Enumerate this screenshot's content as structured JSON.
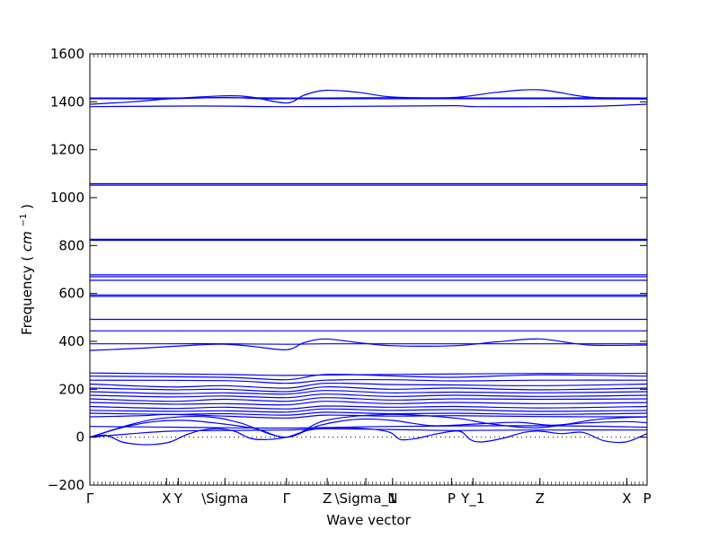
{
  "chart_data": {
    "type": "line",
    "xlabel": "Wave vector",
    "ylabel": "Frequency",
    "ylabel_unit_base": "cm",
    "ylabel_unit_exp": "−1",
    "ylim": [
      -200,
      1600
    ],
    "yticks": [
      -200,
      0,
      200,
      400,
      600,
      800,
      1000,
      1200,
      1400,
      1600
    ],
    "xlim": [
      0,
      10.4
    ],
    "xticks": [
      {
        "x": 0.0,
        "label": "Γ"
      },
      {
        "x": 1.43,
        "label": "X"
      },
      {
        "x": 1.65,
        "label": "Y"
      },
      {
        "x": 2.52,
        "label": "\\Sigma"
      },
      {
        "x": 3.67,
        "label": "Γ"
      },
      {
        "x": 4.43,
        "label": "Z"
      },
      {
        "x": 5.15,
        "label": "\\Sigma_1"
      },
      {
        "x": 5.65,
        "label": "N"
      },
      {
        "x": 6.75,
        "label": "P"
      },
      {
        "x": 7.15,
        "label": "Y_1"
      },
      {
        "x": 8.4,
        "label": "Z"
      },
      {
        "x": 10.02,
        "label": "X"
      },
      {
        "x": 10.4,
        "label": "P"
      }
    ],
    "grid": false,
    "zero_line": true,
    "line_color": "#0000ff",
    "series": [
      {
        "x": [
          0,
          1.5,
          2.5,
          3.67,
          4.4,
          5.6,
          6.8,
          8.4,
          9.5,
          10.4
        ],
        "values": [
          1416,
          1416,
          1417,
          1416,
          1416,
          1417,
          1416,
          1416,
          1417,
          1416
        ]
      },
      {
        "x": [
          0,
          1.5,
          2.5,
          3.3,
          3.67,
          4.4,
          5.6,
          6.8,
          8.4,
          10.4
        ],
        "values": [
          1413,
          1413,
          1418,
          1412,
          1413,
          1413,
          1413,
          1413,
          1413,
          1412
        ]
      },
      {
        "x": [
          0,
          0.8,
          1.5,
          2.5,
          3.0,
          3.67,
          4.0,
          4.4,
          5.0,
          5.65,
          6.8,
          7.6,
          8.4,
          9.3,
          10.4
        ],
        "values": [
          1390,
          1400,
          1413,
          1425,
          1420,
          1395,
          1428,
          1448,
          1440,
          1420,
          1418,
          1440,
          1450,
          1420,
          1412
        ]
      },
      {
        "x": [
          0,
          1.5,
          2.5,
          3.67,
          5.6,
          6.8,
          7.2,
          8.4,
          9.5,
          10.4
        ],
        "values": [
          1380,
          1382,
          1382,
          1380,
          1382,
          1384,
          1380,
          1380,
          1382,
          1390
        ]
      },
      {
        "x": [
          0,
          2.5,
          5.6,
          8.4,
          10.4
        ],
        "values": [
          1058,
          1058,
          1058,
          1058,
          1058
        ]
      },
      {
        "x": [
          0,
          2.5,
          5.6,
          8.4,
          10.4
        ],
        "values": [
          1052,
          1052,
          1052,
          1052,
          1052
        ]
      },
      {
        "x": [
          0,
          2.5,
          5.6,
          8.4,
          10.4
        ],
        "values": [
          826,
          826,
          826,
          826,
          826
        ]
      },
      {
        "x": [
          0,
          2.5,
          5.6,
          8.4,
          10.4
        ],
        "values": [
          822,
          822,
          822,
          822,
          822
        ]
      },
      {
        "x": [
          0,
          2.5,
          5.6,
          8.4,
          10.4
        ],
        "values": [
          678,
          678,
          678,
          678,
          678
        ]
      },
      {
        "x": [
          0,
          2.5,
          5.6,
          8.4,
          10.4
        ],
        "values": [
          670,
          670,
          670,
          670,
          670
        ]
      },
      {
        "x": [
          0,
          2.5,
          5.6,
          8.4,
          10.4
        ],
        "values": [
          655,
          655,
          655,
          655,
          655
        ]
      },
      {
        "x": [
          0,
          2.5,
          5.6,
          8.4,
          10.4
        ],
        "values": [
          594,
          594,
          594,
          594,
          594
        ]
      },
      {
        "x": [
          0,
          2.5,
          5.6,
          8.4,
          10.4
        ],
        "values": [
          588,
          588,
          588,
          588,
          588
        ]
      },
      {
        "x": [
          0,
          2.5,
          5.6,
          8.4,
          10.4
        ],
        "values": [
          492,
          492,
          492,
          492,
          492
        ]
      },
      {
        "x": [
          0,
          2.5,
          5.6,
          8.4,
          10.4
        ],
        "values": [
          444,
          444,
          444,
          444,
          444
        ]
      },
      {
        "x": [
          0,
          1.5,
          2.5,
          3.67,
          4.4,
          5.6,
          6.8,
          8.4,
          10.4
        ],
        "values": [
          390,
          390,
          390,
          388,
          390,
          390,
          390,
          390,
          390
        ]
      },
      {
        "x": [
          0,
          1.0,
          2.0,
          2.5,
          3.0,
          3.67,
          4.0,
          4.4,
          5.0,
          5.65,
          6.8,
          7.6,
          8.4,
          9.3,
          10.4
        ],
        "values": [
          362,
          372,
          385,
          388,
          380,
          365,
          395,
          410,
          395,
          382,
          382,
          398,
          410,
          385,
          385
        ]
      },
      {
        "x": [
          0,
          2.5,
          3.67,
          5.6,
          8.4,
          10.4
        ],
        "values": [
          268,
          262,
          258,
          262,
          266,
          266
        ]
      },
      {
        "x": [
          0,
          2.5,
          3.67,
          4.4,
          5.6,
          6.8,
          8.4,
          10.4
        ],
        "values": [
          255,
          250,
          240,
          262,
          256,
          250,
          260,
          255
        ]
      },
      {
        "x": [
          0,
          2.5,
          3.67,
          4.4,
          5.6,
          6.8,
          8.4,
          10.4
        ],
        "values": [
          238,
          236,
          225,
          238,
          240,
          235,
          238,
          238
        ]
      },
      {
        "x": [
          0,
          1.5,
          2.5,
          3.67,
          4.4,
          5.6,
          6.8,
          8.4,
          10.4
        ],
        "values": [
          222,
          210,
          215,
          205,
          225,
          220,
          218,
          215,
          222
        ]
      },
      {
        "x": [
          0,
          1.5,
          2.5,
          3.67,
          4.4,
          5.6,
          6.8,
          8.4,
          10.4
        ],
        "values": [
          205,
          198,
          200,
          190,
          210,
          200,
          205,
          198,
          205
        ]
      },
      {
        "x": [
          0,
          1.5,
          2.5,
          3.67,
          4.4,
          5.6,
          6.8,
          8.4,
          10.4
        ],
        "values": [
          190,
          182,
          185,
          180,
          195,
          185,
          188,
          185,
          190
        ]
      },
      {
        "x": [
          0,
          1.5,
          2.5,
          3.67,
          4.4,
          5.6,
          6.8,
          8.4,
          10.4
        ],
        "values": [
          175,
          168,
          172,
          165,
          180,
          170,
          175,
          170,
          175
        ]
      },
      {
        "x": [
          0,
          1.5,
          2.5,
          3.67,
          4.4,
          5.6,
          6.8,
          8.4,
          10.4
        ],
        "values": [
          160,
          150,
          158,
          150,
          165,
          155,
          160,
          158,
          160
        ]
      },
      {
        "x": [
          0,
          1.5,
          2.5,
          3.67,
          4.4,
          5.6,
          6.8,
          8.4,
          10.4
        ],
        "values": [
          145,
          138,
          140,
          135,
          150,
          140,
          145,
          140,
          145
        ]
      },
      {
        "x": [
          0,
          1.5,
          2.5,
          3.67,
          4.4,
          5.6,
          6.8,
          8.4,
          10.4
        ],
        "values": [
          128,
          120,
          125,
          118,
          130,
          125,
          128,
          122,
          128
        ]
      },
      {
        "x": [
          0,
          1.5,
          2.5,
          3.67,
          4.4,
          5.6,
          6.8,
          8.4,
          10.4
        ],
        "values": [
          112,
          108,
          110,
          105,
          118,
          112,
          115,
          108,
          112
        ]
      },
      {
        "x": [
          0,
          1.5,
          2.5,
          3.67,
          4.4,
          5.6,
          6.8,
          8.4,
          10.4
        ],
        "values": [
          100,
          95,
          98,
          92,
          104,
          98,
          100,
          95,
          100
        ]
      },
      {
        "x": [
          0,
          1.0,
          1.5,
          2.5,
          3.67,
          4.4,
          5.6,
          6.8,
          8.4,
          10.4
        ],
        "values": [
          85,
          90,
          95,
          88,
          80,
          92,
          88,
          90,
          86,
          85
        ]
      },
      {
        "x": [
          0,
          0.8,
          1.4,
          2.2,
          2.8,
          3.67,
          4.4,
          5.6,
          6.8,
          7.5,
          8.4,
          9.5,
          10.4
        ],
        "values": [
          0,
          55,
          80,
          85,
          60,
          0,
          70,
          95,
          80,
          55,
          40,
          75,
          85
        ]
      },
      {
        "x": [
          0,
          0.6,
          1.2,
          1.8,
          2.5,
          3.1,
          3.67,
          4.3,
          5.0,
          5.65,
          6.4,
          7.2,
          8.0,
          8.6,
          9.3,
          10.0,
          10.4
        ],
        "values": [
          0,
          40,
          65,
          70,
          55,
          35,
          0,
          50,
          75,
          70,
          48,
          55,
          62,
          50,
          60,
          65,
          60
        ]
      },
      {
        "x": [
          0,
          0.3,
          0.6,
          0.9,
          1.2,
          1.5,
          1.8,
          2.1,
          2.4,
          2.7,
          3.0,
          3.3,
          3.67,
          4.1,
          4.6,
          5.2,
          5.6,
          5.8,
          6.1,
          6.5,
          6.9,
          7.1,
          7.3,
          7.7,
          8.1,
          8.4,
          8.8,
          9.2,
          9.6,
          10.0,
          10.4
        ],
        "values": [
          0,
          8,
          -20,
          -30,
          -30,
          -20,
          10,
          30,
          35,
          25,
          -5,
          -10,
          0,
          30,
          40,
          35,
          20,
          -10,
          -5,
          15,
          25,
          -10,
          -20,
          -5,
          20,
          25,
          15,
          20,
          -15,
          -20,
          15
        ]
      },
      {
        "x": [
          0,
          0.8,
          1.5,
          2.5,
          3.67,
          4.4,
          5.6,
          6.8,
          8.4,
          10.4
        ],
        "values": [
          0,
          15,
          25,
          28,
          30,
          35,
          32,
          28,
          30,
          30
        ]
      },
      {
        "x": [
          0,
          1.5,
          3.67,
          5.6,
          8.4,
          10.4
        ],
        "values": [
          45,
          42,
          38,
          45,
          48,
          42
        ]
      }
    ]
  }
}
